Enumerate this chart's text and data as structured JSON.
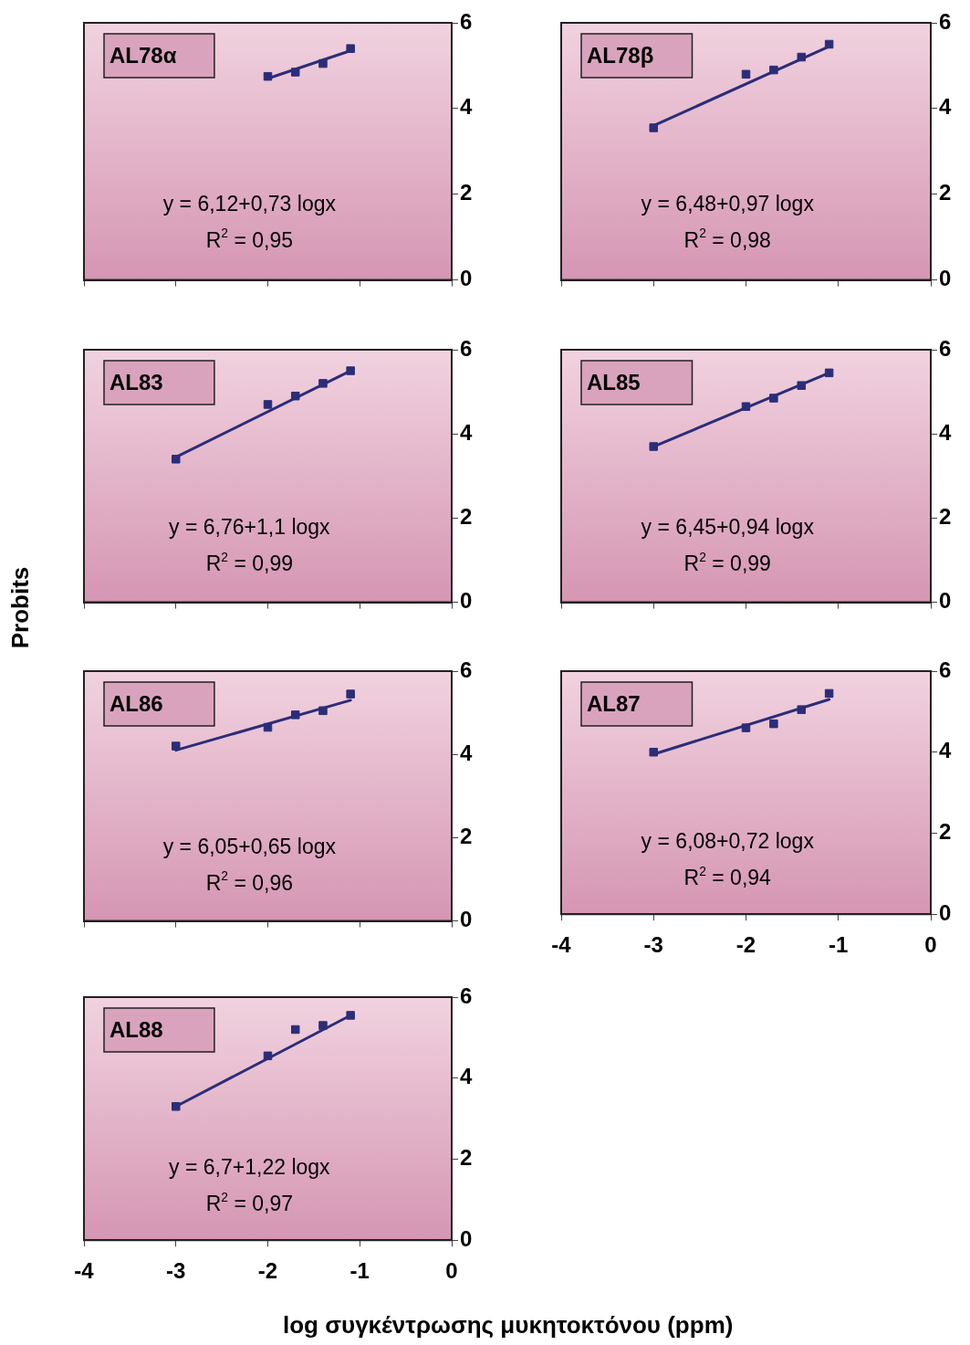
{
  "chart_data": [
    {
      "type": "scatter",
      "title": "AL78α",
      "xlim": [
        -4,
        0
      ],
      "xticks": [
        -4,
        -3,
        -2,
        -1,
        0
      ],
      "ylim": [
        0,
        6
      ],
      "yticks": [
        0,
        2,
        4,
        6
      ],
      "tick_labels": "y",
      "grid": false,
      "legend": false,
      "annotations": [
        "y = 6,12+0,73 logx",
        "R$^{2}$ = 0,95"
      ],
      "series": [
        {
          "type": "line",
          "marker": "none",
          "color": "#2b2d78",
          "x": [
            -2,
            -1.1
          ],
          "values": [
            4.7,
            5.35
          ]
        },
        {
          "type": "scatter",
          "marker": "square",
          "color": "#2b2d78",
          "x": [
            -2,
            -1.7,
            -1.4,
            -1.1
          ],
          "values": [
            4.75,
            4.85,
            5.05,
            5.4
          ]
        }
      ]
    },
    {
      "type": "scatter",
      "title": "AL78β",
      "xlim": [
        -4,
        0
      ],
      "xticks": [
        -4,
        -3,
        -2,
        -1,
        0
      ],
      "ylim": [
        0,
        6
      ],
      "yticks": [
        0,
        2,
        4,
        6
      ],
      "tick_labels": "y",
      "grid": false,
      "legend": false,
      "annotations": [
        "y = 6,48+0,97 logx",
        "R$^{2}$ = 0,98"
      ],
      "series": [
        {
          "type": "line",
          "marker": "none",
          "color": "#2b2d78",
          "x": [
            -3,
            -1.1
          ],
          "values": [
            3.6,
            5.45
          ]
        },
        {
          "type": "scatter",
          "marker": "square",
          "color": "#2b2d78",
          "x": [
            -3,
            -2,
            -1.7,
            -1.4,
            -1.1
          ],
          "values": [
            3.55,
            4.8,
            4.9,
            5.2,
            5.5
          ]
        }
      ]
    },
    {
      "type": "scatter",
      "title": "AL83",
      "ylabel": "Probits",
      "xlim": [
        -4,
        0
      ],
      "xticks": [
        -4,
        -3,
        -2,
        -1,
        0
      ],
      "ylim": [
        0,
        6
      ],
      "yticks": [
        0,
        2,
        4,
        6
      ],
      "tick_labels": "y",
      "grid": false,
      "legend": false,
      "annotations": [
        "y = 6,76+1,1 logx",
        "R$^{2}$ = 0,99"
      ],
      "series": [
        {
          "type": "line",
          "marker": "none",
          "color": "#2b2d78",
          "x": [
            -3,
            -1.1
          ],
          "values": [
            3.45,
            5.5
          ]
        },
        {
          "type": "scatter",
          "marker": "square",
          "color": "#2b2d78",
          "x": [
            -3,
            -2,
            -1.7,
            -1.4,
            -1.1
          ],
          "values": [
            3.4,
            4.7,
            4.9,
            5.2,
            5.5
          ]
        }
      ]
    },
    {
      "type": "scatter",
      "title": "AL85",
      "xlim": [
        -4,
        0
      ],
      "xticks": [
        -4,
        -3,
        -2,
        -1,
        0
      ],
      "ylim": [
        0,
        6
      ],
      "yticks": [
        0,
        2,
        4,
        6
      ],
      "tick_labels": "y",
      "grid": false,
      "legend": false,
      "annotations": [
        "y = 6,45+0,94 logx",
        "R$^{2}$ = 0,99"
      ],
      "series": [
        {
          "type": "line",
          "marker": "none",
          "color": "#2b2d78",
          "x": [
            -3,
            -1.1
          ],
          "values": [
            3.7,
            5.45
          ]
        },
        {
          "type": "scatter",
          "marker": "square",
          "color": "#2b2d78",
          "x": [
            -3,
            -2,
            -1.7,
            -1.4,
            -1.1
          ],
          "values": [
            3.7,
            4.65,
            4.85,
            5.15,
            5.45
          ]
        }
      ]
    },
    {
      "type": "scatter",
      "title": "AL86",
      "xlim": [
        -4,
        0
      ],
      "xticks": [
        -4,
        -3,
        -2,
        -1,
        0
      ],
      "ylim": [
        0,
        6
      ],
      "yticks": [
        0,
        2,
        4,
        6
      ],
      "tick_labels": "y",
      "grid": false,
      "legend": false,
      "annotations": [
        "y = 6,05+0,65 logx",
        "R$^{2}$ = 0,96"
      ],
      "series": [
        {
          "type": "line",
          "marker": "none",
          "color": "#2b2d78",
          "x": [
            -3,
            -1.1
          ],
          "values": [
            4.1,
            5.3
          ]
        },
        {
          "type": "scatter",
          "marker": "square",
          "color": "#2b2d78",
          "x": [
            -3,
            -2,
            -1.7,
            -1.4,
            -1.1
          ],
          "values": [
            4.2,
            4.65,
            4.95,
            5.05,
            5.45
          ]
        }
      ]
    },
    {
      "type": "scatter",
      "title": "AL87",
      "xlim": [
        -4,
        0
      ],
      "xticks": [
        -4,
        -3,
        -2,
        -1,
        0
      ],
      "ylim": [
        0,
        6
      ],
      "yticks": [
        0,
        2,
        4,
        6
      ],
      "grid": false,
      "legend": false,
      "annotations": [
        "y = 6,08+0,72 logx",
        "R$^{2}$ = 0,94"
      ],
      "series": [
        {
          "type": "line",
          "marker": "none",
          "color": "#2b2d78",
          "x": [
            -3,
            -1.1
          ],
          "values": [
            3.95,
            5.3
          ]
        },
        {
          "type": "scatter",
          "marker": "square",
          "color": "#2b2d78",
          "x": [
            -3,
            -2,
            -1.7,
            -1.4,
            -1.1
          ],
          "values": [
            4.0,
            4.6,
            4.7,
            5.05,
            5.45
          ]
        }
      ]
    },
    {
      "type": "scatter",
      "title": "AL88",
      "xlabel": "log συγκέντρωσης μυκητοκτόνου (ppm)",
      "xlim": [
        -4,
        0
      ],
      "xticks": [
        -4,
        -3,
        -2,
        -1,
        0
      ],
      "ylim": [
        0,
        6
      ],
      "yticks": [
        0,
        2,
        4,
        6
      ],
      "grid": false,
      "legend": false,
      "annotations": [
        "y = 6,7+1,22 logx",
        "R$^{2}$ = 0,97"
      ],
      "series": [
        {
          "type": "line",
          "marker": "none",
          "color": "#2b2d78",
          "x": [
            -3,
            -1.1
          ],
          "values": [
            3.3,
            5.55
          ]
        },
        {
          "type": "scatter",
          "marker": "square",
          "color": "#2b2d78",
          "x": [
            -3,
            -2,
            -1.7,
            -1.4,
            -1.1
          ],
          "values": [
            3.3,
            4.55,
            5.2,
            5.3,
            5.55
          ]
        }
      ]
    }
  ]
}
